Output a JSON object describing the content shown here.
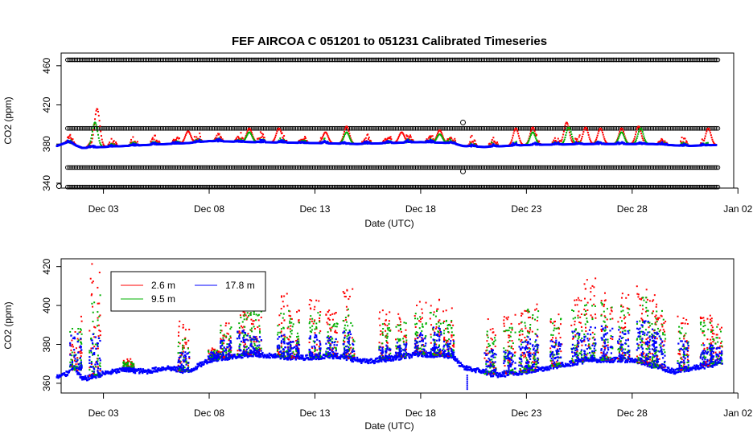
{
  "chart_data": [
    {
      "type": "scatter",
      "title": "FEF   AIRCOA  C    051201  to  051231   Calibrated Timeseries",
      "xlabel": "Date (UTC)",
      "ylabel": "CO2 (ppm)",
      "xlim": [
        0.0,
        31.8
      ],
      "ylim": [
        335,
        473
      ],
      "x_tick_values": [
        2.0,
        7.0,
        12.0,
        17.0,
        22.0,
        27.0,
        32.0
      ],
      "x_tick_labels": [
        "Dec 03",
        "Dec 08",
        "Dec 13",
        "Dec 18",
        "Dec 23",
        "Dec 28",
        "Jan 02"
      ],
      "y_ticks": [
        340,
        380,
        420,
        460
      ],
      "standards": [
        {
          "name": "standard-466",
          "value": 466
        },
        {
          "name": "standard-396",
          "value": 396
        },
        {
          "name": "standard-356",
          "value": 356
        },
        {
          "name": "standard-336",
          "value": 336
        }
      ],
      "outliers": [
        {
          "x": -0.1,
          "y": 337
        },
        {
          "x": 19.0,
          "y": 402
        },
        {
          "x": 19.0,
          "y": 352
        }
      ],
      "series": [
        {
          "name": "2.6 m",
          "color": "#ff0000",
          "peaks": [
            [
              1.7,
              416
            ],
            [
              6.0,
              393
            ],
            [
              8.9,
              396
            ],
            [
              10.3,
              396
            ],
            [
              12.5,
              392
            ],
            [
              13.5,
              398
            ],
            [
              16.1,
              392
            ],
            [
              17.9,
              394
            ],
            [
              21.5,
              396
            ],
            [
              22.3,
              397
            ],
            [
              23.9,
              402
            ],
            [
              24.8,
              397
            ],
            [
              25.5,
              396
            ],
            [
              26.5,
              396
            ],
            [
              27.3,
              398
            ],
            [
              30.6,
              396
            ]
          ]
        },
        {
          "name": "9.5 m",
          "color": "#00b000",
          "peaks": [
            [
              1.6,
              402
            ],
            [
              8.9,
              392
            ],
            [
              13.5,
              392
            ],
            [
              17.9,
              390
            ],
            [
              22.3,
              392
            ],
            [
              24.0,
              397
            ],
            [
              26.5,
              392
            ],
            [
              27.4,
              396
            ]
          ]
        },
        {
          "name": "17.8 m",
          "color": "#0000ff",
          "baseline": [
            [
              -0.2,
              378
            ],
            [
              0.3,
              382
            ],
            [
              1.0,
              376
            ],
            [
              3.0,
              378
            ],
            [
              6.0,
              381
            ],
            [
              7.0,
              383
            ],
            [
              9.0,
              382
            ],
            [
              12.0,
              381
            ],
            [
              14.0,
              380
            ],
            [
              17.0,
              382
            ],
            [
              18.5,
              381
            ],
            [
              19.0,
              378
            ],
            [
              20.0,
              377
            ],
            [
              22.0,
              379
            ],
            [
              25.0,
              380
            ],
            [
              28.0,
              380
            ],
            [
              29.5,
              378
            ],
            [
              31.0,
              379
            ]
          ]
        }
      ]
    },
    {
      "type": "scatter",
      "xlabel": "Date (UTC)",
      "ylabel": "CO2 (ppm)",
      "xlim": [
        0.0,
        31.8
      ],
      "ylim": [
        355,
        424
      ],
      "x_tick_values": [
        2.0,
        7.0,
        12.0,
        17.0,
        22.0,
        27.0,
        32.0
      ],
      "x_tick_labels": [
        "Dec 03",
        "Dec 08",
        "Dec 13",
        "Dec 18",
        "Dec 23",
        "Dec 28",
        "Jan 02"
      ],
      "y_ticks": [
        360,
        380,
        400,
        420
      ],
      "legend_position": "top-left",
      "series": [
        {
          "name": "2.6 m",
          "color": "#ff0000"
        },
        {
          "name": "9.5 m",
          "color": "#00b000"
        },
        {
          "name": "17.8 m",
          "color": "#0000ff",
          "baseline": [
            [
              -0.2,
              363
            ],
            [
              0.3,
              365
            ],
            [
              0.5,
              370
            ],
            [
              1.0,
              362
            ],
            [
              2.0,
              365
            ],
            [
              3.0,
              367
            ],
            [
              4.0,
              366
            ],
            [
              5.0,
              368
            ],
            [
              6.0,
              366
            ],
            [
              7.0,
              372
            ],
            [
              9.0,
              375
            ],
            [
              11.0,
              373
            ],
            [
              13.0,
              374
            ],
            [
              14.5,
              371
            ],
            [
              17.0,
              375
            ],
            [
              18.5,
              374
            ],
            [
              19.0,
              368
            ],
            [
              20.0,
              366
            ],
            [
              20.5,
              364
            ],
            [
              22.0,
              366
            ],
            [
              23.0,
              368
            ],
            [
              25.0,
              372
            ],
            [
              27.0,
              372
            ],
            [
              29.0,
              366
            ],
            [
              31.0,
              370
            ]
          ]
        }
      ],
      "events": [
        {
          "day": 0.7,
          "red": 395,
          "green": 394,
          "blue": 386
        },
        {
          "day": 1.6,
          "red": 423,
          "green": 411,
          "blue": 386
        },
        {
          "day": 3.2,
          "red": 373,
          "green": 371,
          "blue": 368
        },
        {
          "day": 5.8,
          "red": 392,
          "green": 383,
          "blue": 376
        },
        {
          "day": 7.2,
          "red": 378,
          "green": 377,
          "blue": 376
        },
        {
          "day": 7.8,
          "red": 392,
          "green": 390,
          "blue": 382
        },
        {
          "day": 8.6,
          "red": 402,
          "green": 397,
          "blue": 388
        },
        {
          "day": 9.2,
          "red": 404,
          "green": 398,
          "blue": 384
        },
        {
          "day": 10.5,
          "red": 407,
          "green": 398,
          "blue": 385
        },
        {
          "day": 11.0,
          "red": 398,
          "green": 394,
          "blue": 382
        },
        {
          "day": 12.0,
          "red": 406,
          "green": 398,
          "blue": 385
        },
        {
          "day": 12.8,
          "red": 398,
          "green": 392,
          "blue": 384
        },
        {
          "day": 13.6,
          "red": 409,
          "green": 399,
          "blue": 387
        },
        {
          "day": 15.3,
          "red": 398,
          "green": 391,
          "blue": 380
        },
        {
          "day": 16.1,
          "red": 396,
          "green": 393,
          "blue": 382
        },
        {
          "day": 17.0,
          "red": 403,
          "green": 396,
          "blue": 386
        },
        {
          "day": 17.7,
          "red": 405,
          "green": 399,
          "blue": 389
        },
        {
          "day": 18.3,
          "red": 399,
          "green": 393,
          "blue": 382
        },
        {
          "day": 20.3,
          "red": 393,
          "green": 388,
          "blue": 378
        },
        {
          "day": 21.2,
          "red": 396,
          "green": 389,
          "blue": 379
        },
        {
          "day": 21.9,
          "red": 398,
          "green": 392,
          "blue": 382
        },
        {
          "day": 22.3,
          "red": 401,
          "green": 398,
          "blue": 385
        },
        {
          "day": 23.4,
          "red": 397,
          "green": 394,
          "blue": 382
        },
        {
          "day": 24.4,
          "red": 404,
          "green": 398,
          "blue": 387
        },
        {
          "day": 25.0,
          "red": 414,
          "green": 401,
          "blue": 389
        },
        {
          "day": 25.8,
          "red": 410,
          "green": 402,
          "blue": 390
        },
        {
          "day": 26.6,
          "red": 407,
          "green": 400,
          "blue": 388
        },
        {
          "day": 27.5,
          "red": 411,
          "green": 406,
          "blue": 392
        },
        {
          "day": 27.9,
          "red": 406,
          "green": 400,
          "blue": 389
        },
        {
          "day": 28.3,
          "red": 402,
          "green": 399,
          "blue": 386
        },
        {
          "day": 29.4,
          "red": 395,
          "green": 392,
          "blue": 382
        },
        {
          "day": 30.5,
          "red": 398,
          "green": 392,
          "blue": 382
        },
        {
          "day": 31.0,
          "red": 393,
          "green": 389,
          "blue": 380
        }
      ]
    }
  ]
}
